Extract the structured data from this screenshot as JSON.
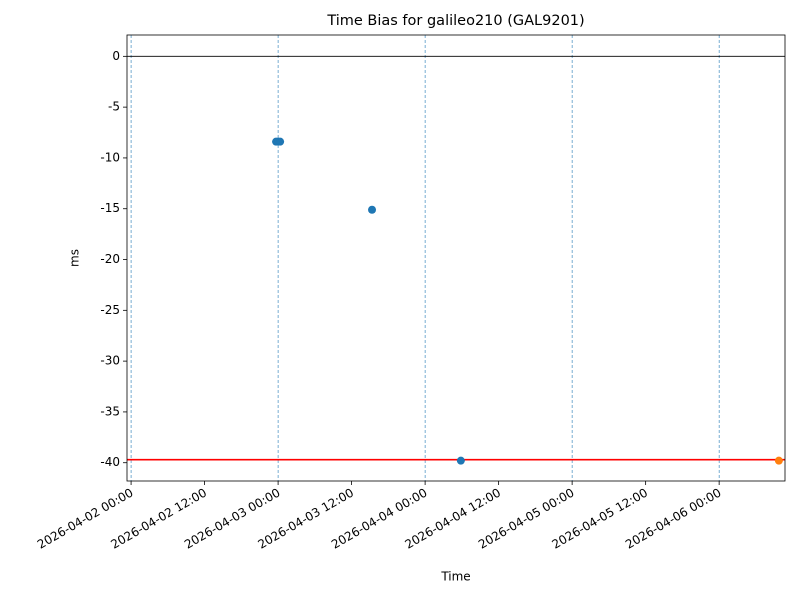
{
  "chart_data": {
    "type": "scatter",
    "title": "Time Bias for galileo210 (GAL9201)",
    "x_label": "Time",
    "y_label": "ms",
    "series": [
      {
        "color": "#1f77b4",
        "x": [
          "2026-04-02 23:40",
          "2026-04-03 00:00",
          "2026-04-03 00:20",
          "2026-04-03 15:20",
          "2026-04-04 05:50"
        ],
        "values": [
          -8.4,
          -8.4,
          -8.4,
          -15.1,
          -39.8
        ]
      },
      {
        "color": "#ff7f0e",
        "x": [
          "2026-04-06 09:45"
        ],
        "values": [
          -39.8
        ]
      }
    ],
    "hlines": [
      {
        "value": 0,
        "color": "#000000"
      },
      {
        "value": -39.7,
        "color": "#ff0000"
      }
    ],
    "vlines": [
      "2026-04-02 00:00",
      "2026-04-03 00:00",
      "2026-04-04 00:00",
      "2026-04-05 00:00",
      "2026-04-06 00:00"
    ],
    "vline_color": "#1f77b4",
    "xlim": [
      "2026-04-01 23:20",
      "2026-04-06 10:45"
    ],
    "xticks": [
      "2026-04-02 00:00",
      "2026-04-02 12:00",
      "2026-04-03 00:00",
      "2026-04-03 12:00",
      "2026-04-04 00:00",
      "2026-04-04 12:00",
      "2026-04-05 00:00",
      "2026-04-05 12:00",
      "2026-04-06 00:00"
    ],
    "ylim": [
      -41.8,
      2.1
    ],
    "yticks": [
      0,
      -5,
      -10,
      -15,
      -20,
      -25,
      -30,
      -35,
      -40
    ]
  }
}
